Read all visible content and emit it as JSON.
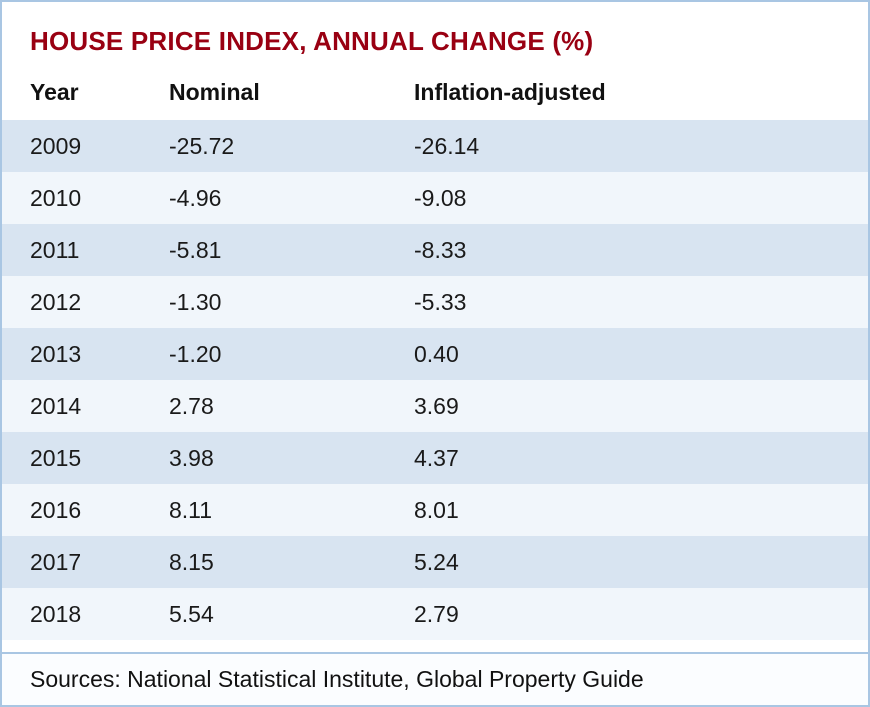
{
  "page": {
    "title": "HOUSE PRICE INDEX, ANNUAL CHANGE (%)",
    "footer": "Sources: National Statistical Institute, Global Property Guide"
  },
  "table": {
    "columns": [
      "Year",
      "Nominal",
      "Inflation-adjusted"
    ],
    "rows": [
      [
        "2009",
        "-25.72",
        "-26.14"
      ],
      [
        "2010",
        "-4.96",
        "-9.08"
      ],
      [
        "2011",
        "-5.81",
        "-8.33"
      ],
      [
        "2012",
        "-1.30",
        "-5.33"
      ],
      [
        "2013",
        "-1.20",
        "0.40"
      ],
      [
        "2014",
        "2.78",
        "3.69"
      ],
      [
        "2015",
        "3.98",
        "4.37"
      ],
      [
        "2016",
        "8.11",
        "8.01"
      ],
      [
        "2017",
        "8.15",
        "5.24"
      ],
      [
        "2018",
        "5.54",
        "2.79"
      ]
    ]
  },
  "colors": {
    "title_text": "#990012",
    "border": "#a9c6e3",
    "row_shaded": "#d8e4f1",
    "row_light": "#f1f6fb"
  },
  "chart_data": {
    "type": "table",
    "title": "HOUSE PRICE INDEX, ANNUAL CHANGE (%)",
    "columns": [
      "Year",
      "Nominal",
      "Inflation-adjusted"
    ],
    "rows": [
      [
        2009,
        -25.72,
        -26.14
      ],
      [
        2010,
        -4.96,
        -9.08
      ],
      [
        2011,
        -5.81,
        -8.33
      ],
      [
        2012,
        -1.3,
        -5.33
      ],
      [
        2013,
        -1.2,
        0.4
      ],
      [
        2014,
        2.78,
        3.69
      ],
      [
        2015,
        3.98,
        4.37
      ],
      [
        2016,
        8.11,
        8.01
      ],
      [
        2017,
        8.15,
        5.24
      ],
      [
        2018,
        5.54,
        2.79
      ]
    ],
    "source": "Sources: National Statistical Institute, Global Property Guide",
    "units": "percent annual change"
  }
}
